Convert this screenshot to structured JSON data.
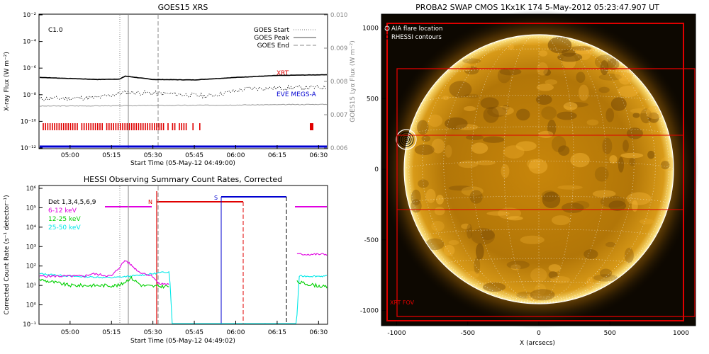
{
  "goes_panel": {
    "title": "GOES15 XRS",
    "class_label": "C1.0",
    "xlabel": "Start Time (05-May-12 04:49:00)",
    "ylabel_left": "X-ray Flux (W m⁻²)",
    "ylabel_right": "GOES15 Lyα Flux (W m⁻²)",
    "x_ticks": [
      "05:00",
      "05:15",
      "05:30",
      "05:45",
      "06:00",
      "06:15",
      "06:30"
    ],
    "y_ticks_left": [
      "10⁻²",
      "10⁻⁴",
      "10⁻⁶",
      "10⁻⁸",
      "10⁻¹⁰",
      "10⁻¹²"
    ],
    "y_ticks_right": [
      "0.010",
      "0.009",
      "0.008",
      "0.007",
      "0.006"
    ],
    "legend": [
      "GOES Start",
      "GOES Peak",
      "GOES End"
    ],
    "labels": {
      "xrt": "XRT",
      "eve": "EVE MEGS-A"
    },
    "colors": {
      "xrt": "#e00000",
      "eve": "#0000d0",
      "rhessi_bar": "#e00000"
    }
  },
  "hessi_panel": {
    "title": "HESSI Observing Summary Count Rates, Corrected",
    "xlabel": "Start Time (05-May-12 04:49:02)",
    "ylabel": "Corrected Count Rate (s⁻¹ detector⁻¹)",
    "x_ticks": [
      "05:00",
      "05:15",
      "05:30",
      "05:45",
      "06:00",
      "06:15",
      "06:30"
    ],
    "y_ticks": [
      "10⁶",
      "10⁵",
      "10⁴",
      "10³",
      "10²",
      "10¹",
      "10⁰",
      "10⁻¹"
    ],
    "det_label": "Det 1,3,4,5,6,9",
    "legend": [
      {
        "label": "6-12 keV",
        "color": "#e000e0"
      },
      {
        "label": "12-25 keV",
        "color": "#00d000"
      },
      {
        "label": "25-50 keV",
        "color": "#00e8e8"
      }
    ],
    "markers": {
      "n": "N",
      "s": "S"
    }
  },
  "swap_panel": {
    "title": "PROBA2 SWAP CMOS 1Kx1K 174  5-May-2012 05:23:47.907 UT",
    "xlabel": "X (arcsecs)",
    "x_ticks": [
      "-1000",
      "-500",
      "0",
      "500",
      "1000"
    ],
    "y_ticks": [
      "1000",
      "500",
      "0",
      "-500",
      "-1000"
    ],
    "legend": [
      "AIA flare location",
      "RHESSI contours"
    ],
    "fov_label": "XRT FOV"
  },
  "chart_data": [
    {
      "type": "line",
      "title": "GOES15 XRS",
      "xlabel": "Start Time (05-May-12 04:49:00)",
      "ylabel": "X-ray Flux (W m⁻²)",
      "y_scale": "log",
      "ylim": [
        1e-12,
        0.01
      ],
      "y2lim": [
        0.006,
        0.01
      ],
      "x_range": [
        "04:49",
        "06:33"
      ],
      "markers": {
        "goes_start": "05:15",
        "goes_peak": "05:20",
        "goes_end": "05:33"
      },
      "series": [
        {
          "name": "",
          "color": "#000000",
          "x": [
            "04:49",
            "05:10",
            "05:18",
            "05:20",
            "05:30",
            "05:45",
            "06:00",
            "06:15",
            "06:33"
          ],
          "y": [
            2e-07,
            1.4e-07,
            1.5e-07,
            2.5e-07,
            1.4e-07,
            1.3e-07,
            2e-07,
            2.8e-07,
            3.2e-07
          ]
        },
        {
          "name": "",
          "color": "#000000",
          "style": "dotted",
          "x": [
            "04:49",
            "05:10",
            "05:20",
            "05:35",
            "05:50",
            "06:05",
            "06:33"
          ],
          "y": [
            5e-09,
            6e-09,
            1.5e-08,
            1.2e-08,
            8e-09,
            3e-08,
            3.5e-08
          ]
        },
        {
          "name": "",
          "color": "#999999",
          "x": [
            "04:49",
            "05:20",
            "06:00",
            "06:33"
          ],
          "y": [
            1.4e-09,
            1.5e-09,
            1.7e-09,
            1.9e-09
          ]
        },
        {
          "name": "",
          "color": "#0000d0",
          "x": [
            "04:49",
            "06:33"
          ],
          "y": [
            1.3e-12,
            1.3e-12
          ]
        }
      ]
    },
    {
      "type": "line",
      "title": "HESSI Observing Summary Count Rates, Corrected",
      "xlabel": "Start Time (05-May-12 04:49:02)",
      "ylabel": "Corrected Count Rate (s⁻¹ detector⁻¹)",
      "y_scale": "log",
      "ylim": [
        0.1,
        1000000
      ],
      "x_range": [
        "04:49",
        "06:33"
      ],
      "series": [
        {
          "name": "6-12 keV",
          "color": "#e000e0",
          "x": [
            "04:49",
            "05:00",
            "05:05",
            "05:08",
            "05:15",
            "05:18",
            "05:20",
            "05:25",
            "05:30",
            "05:32",
            "05:36",
            "06:22",
            "06:33"
          ],
          "y": [
            30,
            30,
            30,
            40,
            30,
            90,
            200,
            50,
            30,
            12,
            12,
            400,
            400
          ]
        },
        {
          "name": "12-25 keV",
          "color": "#00d000",
          "x": [
            "04:49",
            "05:00",
            "05:10",
            "05:18",
            "05:22",
            "05:26",
            "05:30",
            "05:36",
            "06:22",
            "06:33"
          ],
          "y": [
            20,
            10,
            10,
            10,
            25,
            10,
            9,
            9,
            15,
            8
          ]
        },
        {
          "name": "25-50 keV",
          "color": "#00e8e8",
          "x": [
            "04:49",
            "05:00",
            "05:15",
            "05:22",
            "05:30",
            "05:35",
            "05:36",
            "05:37",
            "06:22",
            "06:23",
            "06:33"
          ],
          "y": [
            40,
            30,
            25,
            30,
            40,
            50,
            50,
            0.1,
            0.1,
            30,
            30
          ]
        }
      ]
    },
    {
      "type": "other",
      "title": "PROBA2 SWAP CMOS 1Kx1K 174  5-May-2012 05:23:47.907 UT",
      "xlabel": "X (arcsecs)",
      "xlim": [
        -1100,
        1100
      ],
      "ylim": [
        -1100,
        1100
      ]
    }
  ]
}
